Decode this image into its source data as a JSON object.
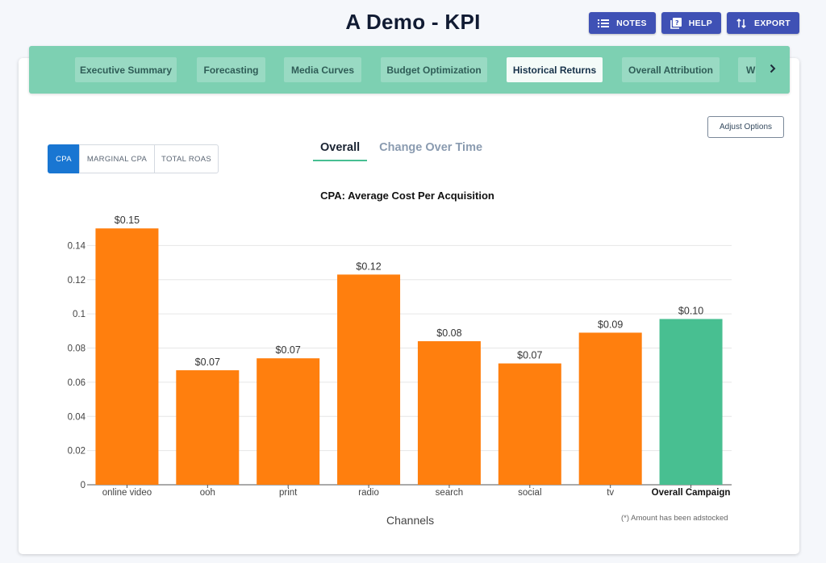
{
  "header": {
    "title": "A Demo - KPI",
    "actions": [
      {
        "label": "NOTES",
        "icon": "list-icon"
      },
      {
        "label": "HELP",
        "icon": "help-book-icon"
      },
      {
        "label": "EXPORT",
        "icon": "swap-vert-icon"
      }
    ]
  },
  "nav": {
    "tabs": [
      {
        "label": "Executive Summary",
        "active": false
      },
      {
        "label": "Forecasting",
        "active": false
      },
      {
        "label": "Media Curves",
        "active": false
      },
      {
        "label": "Budget Optimization",
        "active": false
      },
      {
        "label": "Historical Returns",
        "active": true
      },
      {
        "label": "Overall Attribution",
        "active": false
      },
      {
        "label": "W",
        "active": false
      }
    ],
    "next_icon": "chevron-right-icon"
  },
  "controls": {
    "adjust_label": "Adjust Options",
    "metrics": [
      "CPA",
      "MARGINAL CPA",
      "TOTAL ROAS"
    ],
    "active_metric": "CPA",
    "views": [
      "Overall",
      "Change Over Time"
    ],
    "active_view": "Overall"
  },
  "chart_data": {
    "type": "bar",
    "title": "CPA: Average Cost Per Acquisition",
    "xlabel": "Channels",
    "ylabel": "",
    "categories": [
      "online video",
      "ooh",
      "print",
      "radio",
      "search",
      "social",
      "tv",
      "Overall Campaign"
    ],
    "values": [
      0.15,
      0.067,
      0.074,
      0.123,
      0.084,
      0.071,
      0.089,
      0.097
    ],
    "data_labels": [
      "$0.15",
      "$0.07",
      "$0.07",
      "$0.12",
      "$0.08",
      "$0.07",
      "$0.09",
      "$0.10"
    ],
    "ylim": [
      0,
      0.16
    ],
    "yticks": [
      0,
      0.02,
      0.04,
      0.06,
      0.08,
      0.1,
      0.12,
      0.14
    ],
    "ytick_labels": [
      "0",
      "0.02",
      "0.04",
      "0.06",
      "0.08",
      "0.1",
      "0.12",
      "0.14"
    ],
    "bar_color": "#ff7f0e",
    "highlight_color": "#48bf91",
    "highlight_category": "Overall Campaign",
    "grid": true,
    "footnote": "(*) Amount has been adstocked"
  }
}
